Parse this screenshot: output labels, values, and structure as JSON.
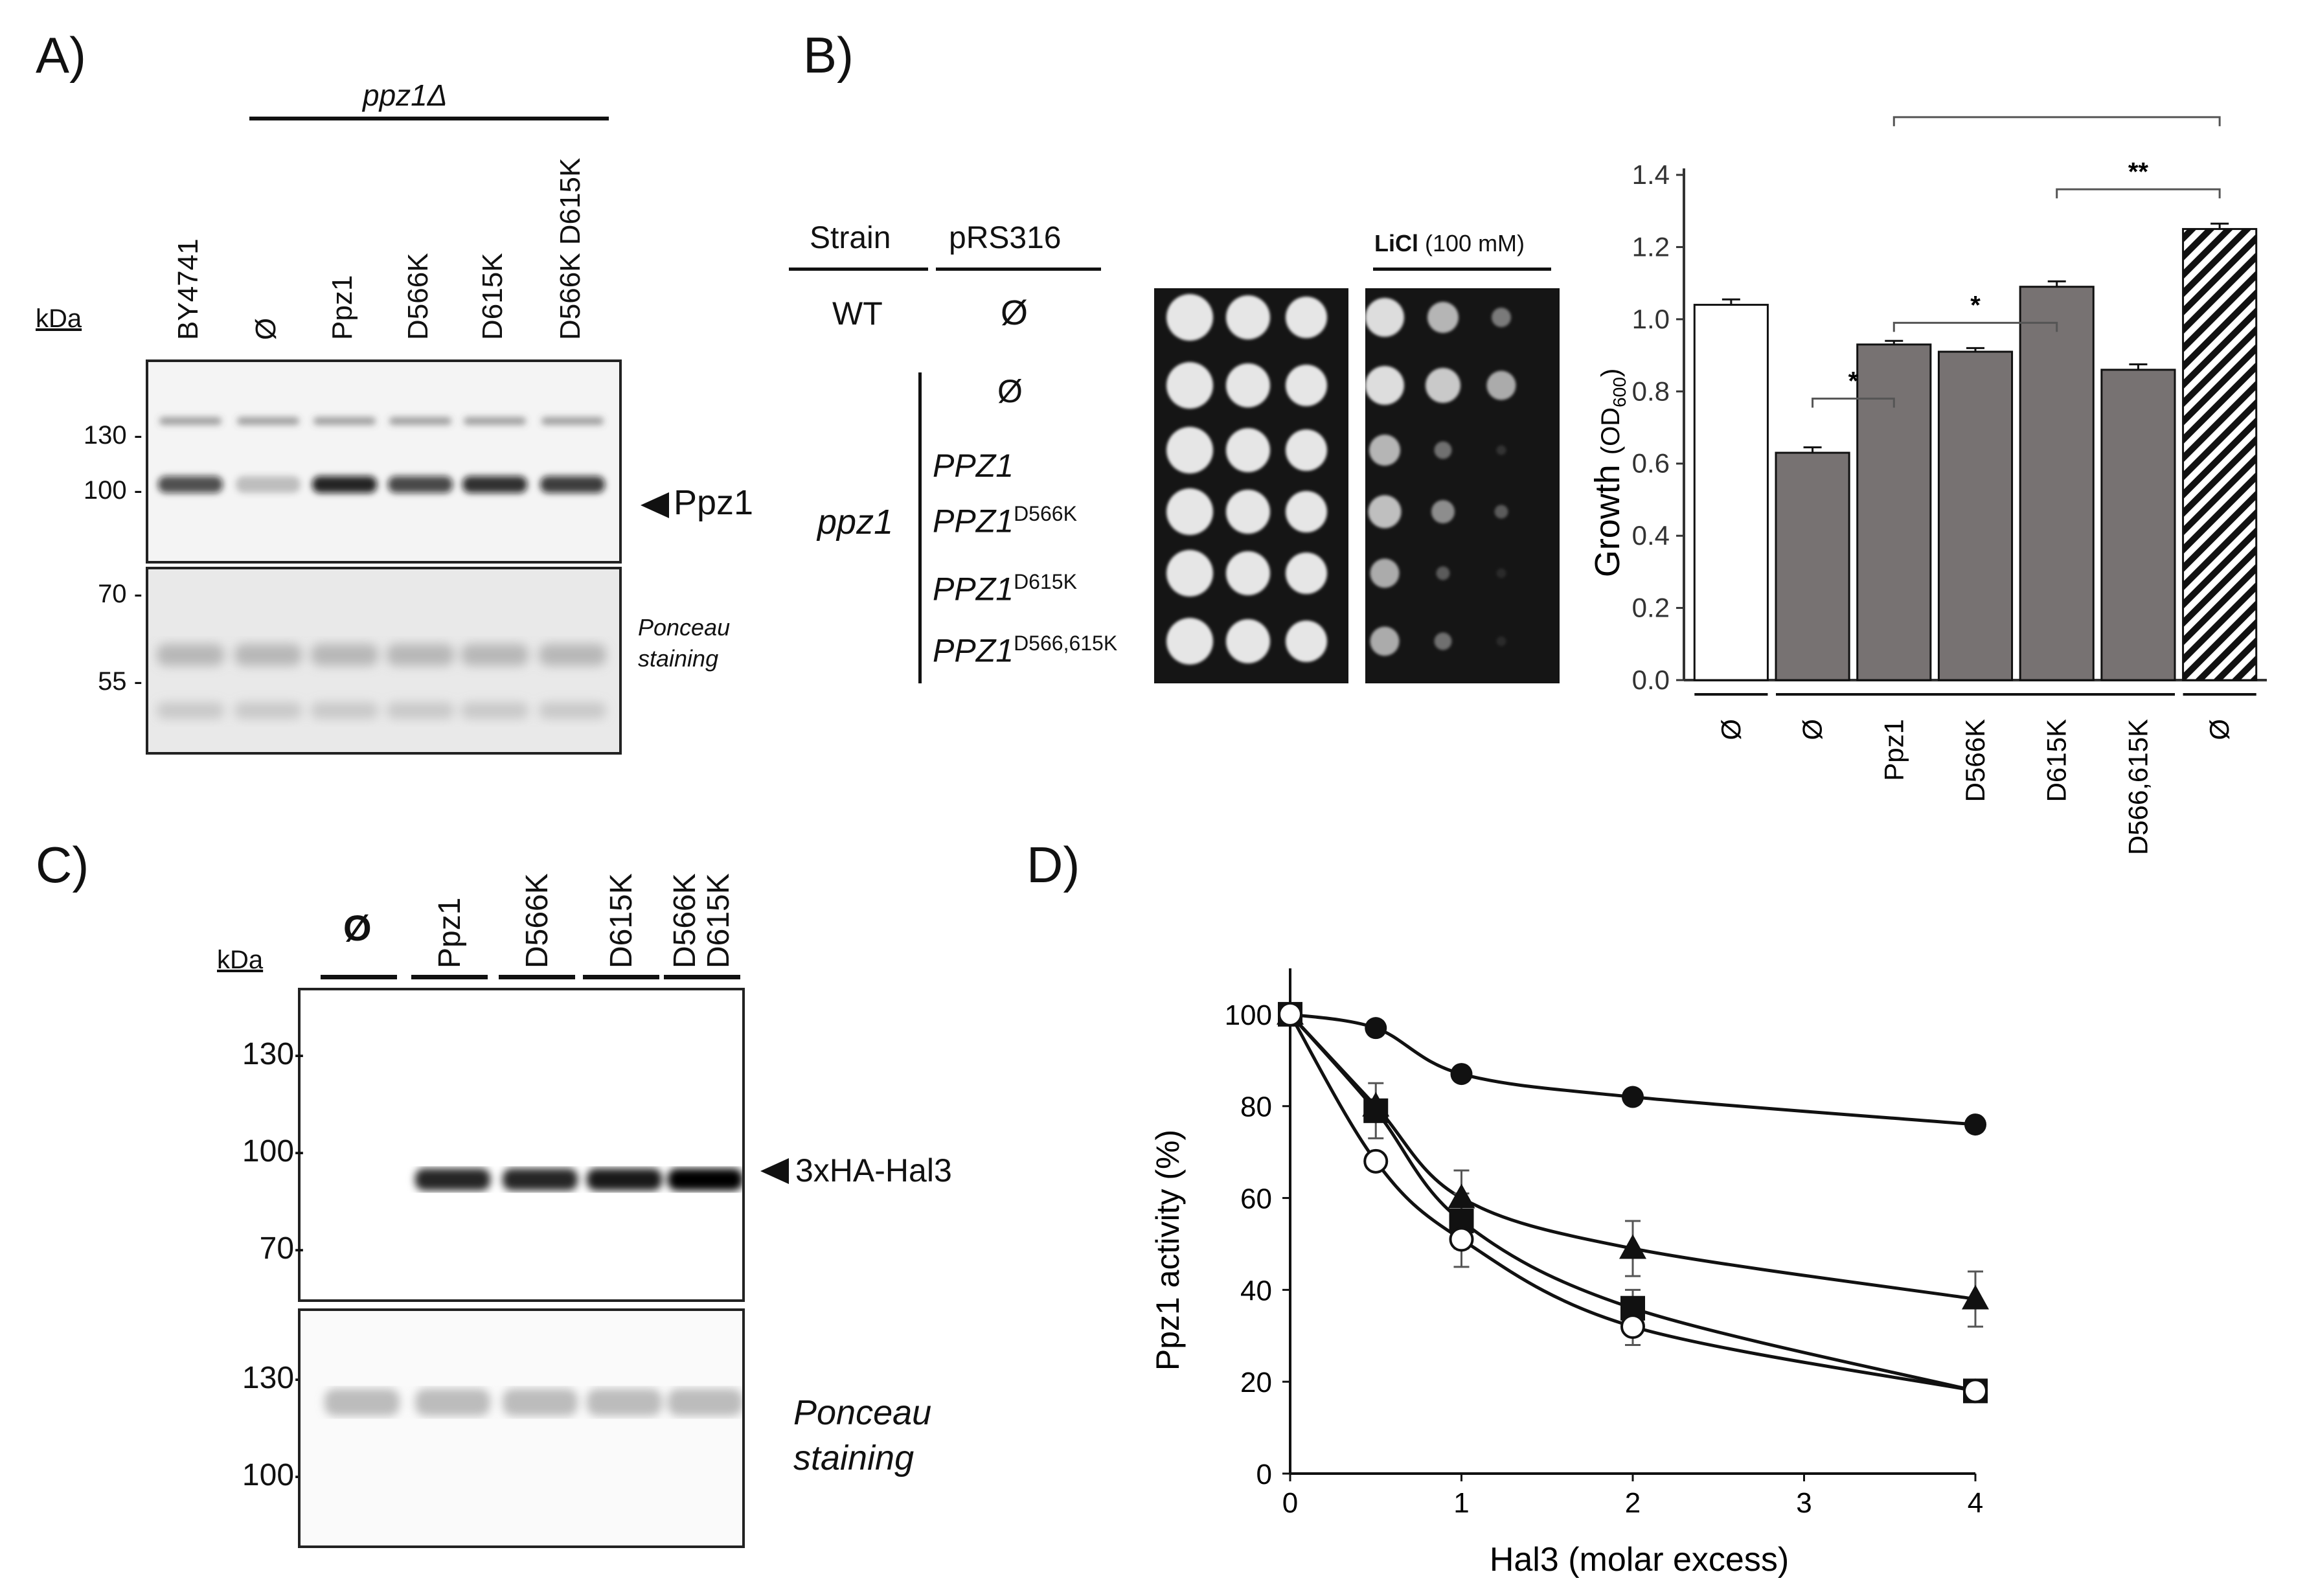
{
  "panelA": {
    "label": "A)",
    "group_label": "ppz1Δ",
    "kda": "kDa",
    "lanes": [
      "BY4741",
      "Ø",
      "Ppz1",
      "D566K",
      "D615K",
      "D566K D615K"
    ],
    "markers_top": [
      "130 -",
      "100 -"
    ],
    "markers_bottom": [
      "70 -",
      "55 -"
    ],
    "band_label": "Ppz1",
    "ponceau": "Ponceau staining"
  },
  "panelB": {
    "label": "B)",
    "col_strain": "Strain",
    "col_plasmid": "pRS316",
    "licl_bold": "LiCl",
    "licl_conc": "(100 mM)",
    "wt": "WT",
    "wt_plasmid": "Ø",
    "ppz1": "ppz1",
    "rows": [
      {
        "gene": "Ø",
        "sup": ""
      },
      {
        "gene": "PPZ1",
        "sup": ""
      },
      {
        "gene": "PPZ1",
        "sup": "D566K"
      },
      {
        "gene": "PPZ1",
        "sup": "D615K"
      },
      {
        "gene": "PPZ1",
        "sup": "D566,615K"
      }
    ]
  },
  "chart_data": [
    {
      "type": "bar",
      "ylabel": "Growth (OD600)",
      "ylabel_main": "Growth",
      "ylabel_unit": "(OD",
      "ylabel_sub": "600",
      "ylabel_close": ")",
      "ylim": [
        0,
        1.4
      ],
      "yticks": [
        "0.0",
        "0.2",
        "0.4",
        "0.6",
        "0.8",
        "1.0",
        "1.2",
        "1.4"
      ],
      "categories": [
        "Ø",
        "Ø",
        "Ppz1",
        "D566K",
        "D615K",
        "D566,615K",
        "Ø"
      ],
      "values": [
        1.04,
        0.63,
        0.93,
        0.91,
        1.09,
        0.86,
        1.25
      ],
      "errors": [
        0.015,
        0.015,
        0.01,
        0.01,
        0.015,
        0.015,
        0.015
      ],
      "fills": [
        "white",
        "gray",
        "gray",
        "gray",
        "gray",
        "gray",
        "hatch"
      ],
      "significance": [
        {
          "from": 1,
          "to": 2,
          "label": "*"
        },
        {
          "from": 2,
          "to": 4,
          "label": "*"
        },
        {
          "from": 4,
          "to": 6,
          "label": "**"
        },
        {
          "from": 2,
          "to": 6,
          "label": "***"
        }
      ]
    },
    {
      "type": "line",
      "xlabel": "Hal3 (molar excess)",
      "ylabel": "Ppz1 activity (%)",
      "xlim": [
        0,
        4
      ],
      "ylim": [
        0,
        110
      ],
      "xticks": [
        "0",
        "1",
        "2",
        "3",
        "4"
      ],
      "yticks": [
        "0",
        "20",
        "40",
        "60",
        "80",
        "100"
      ],
      "series": [
        {
          "marker": "circle-filled",
          "x": [
            0,
            0.5,
            1,
            2,
            4
          ],
          "y": [
            100,
            97,
            87,
            82,
            76
          ],
          "err": [
            0,
            0,
            0,
            0,
            0
          ]
        },
        {
          "marker": "triangle",
          "x": [
            0,
            0.5,
            1,
            2,
            4
          ],
          "y": [
            100,
            80,
            60,
            49,
            38
          ],
          "err": [
            0,
            0,
            6,
            6,
            6
          ]
        },
        {
          "marker": "square",
          "x": [
            0,
            0.5,
            1,
            2,
            4
          ],
          "y": [
            100,
            79,
            55,
            36,
            18
          ],
          "err": [
            0,
            6,
            6,
            4,
            2
          ]
        },
        {
          "marker": "circle-open",
          "x": [
            0,
            0.5,
            1,
            2,
            4
          ],
          "y": [
            100,
            68,
            51,
            32,
            18
          ],
          "err": [
            0,
            0,
            6,
            4,
            2
          ]
        }
      ]
    }
  ],
  "panelC": {
    "label": "C)",
    "kda": "kDa",
    "lanes": [
      "Ø",
      "Ppz1",
      "D566K",
      "D615K",
      "D566K D615K"
    ],
    "markers_top": [
      "130-",
      "100-",
      "70-"
    ],
    "markers_bottom": [
      "130-",
      "100-"
    ],
    "band_label": "3xHA-Hal3",
    "ponceau1": "Ponceau",
    "ponceau2": "staining"
  },
  "panelD": {
    "label": "D)"
  }
}
